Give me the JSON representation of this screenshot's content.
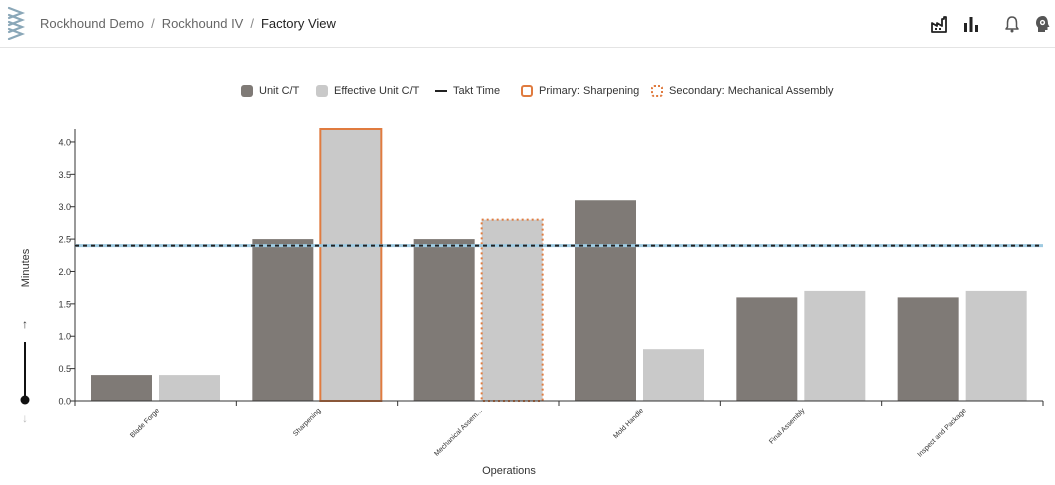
{
  "breadcrumb": {
    "items": [
      "Rockhound Demo",
      "Rockhound IV"
    ],
    "current": "Factory View",
    "separator": "/"
  },
  "header_icons": [
    "factory-icon",
    "bar-chart-icon",
    "bell-icon",
    "settings-head-icon"
  ],
  "legend": {
    "unit_ct": "Unit C/T",
    "effective_unit_ct": "Effective Unit C/T",
    "takt_time": "Takt Time",
    "primary": "Primary: Sharpening",
    "secondary": "Secondary: Mechanical Assembly"
  },
  "colors": {
    "unit_ct": "#7f7a76",
    "effective_unit_ct": "#c9c9c9",
    "takt_time": "#222222",
    "takt_highlight": "#9ecae1",
    "primary_outline": "#e07b3f",
    "secondary_outline": "#e07b3f",
    "axis": "#333333"
  },
  "chart_data": {
    "type": "bar",
    "title": "",
    "xlabel": "Operations",
    "ylabel": "Minutes",
    "ylim": [
      0,
      4.2
    ],
    "yticks": [
      "0.0",
      "0.5",
      "1.0",
      "1.5",
      "2.0",
      "2.5",
      "3.0",
      "3.5",
      "4.0"
    ],
    "categories": [
      "Blade Forge",
      "Sharpening",
      "Mechanical Assem...",
      "Mold Handle",
      "Final Assembly",
      "Inspect and Package"
    ],
    "series": [
      {
        "name": "Unit C/T",
        "values": [
          0.4,
          2.5,
          2.5,
          3.1,
          1.6,
          1.6
        ]
      },
      {
        "name": "Effective Unit C/T",
        "values": [
          0.4,
          4.2,
          2.8,
          0.8,
          1.7,
          1.7
        ]
      }
    ],
    "takt_time": 2.4,
    "primary_bottleneck": {
      "category": "Sharpening",
      "series": "Effective Unit C/T"
    },
    "secondary_bottleneck": {
      "category": "Mechanical Assem...",
      "series": "Effective Unit C/T"
    },
    "grid": false,
    "legend_position": "top-center"
  },
  "slider": {
    "up_arrow": "↑",
    "down_arrow": "↓"
  }
}
